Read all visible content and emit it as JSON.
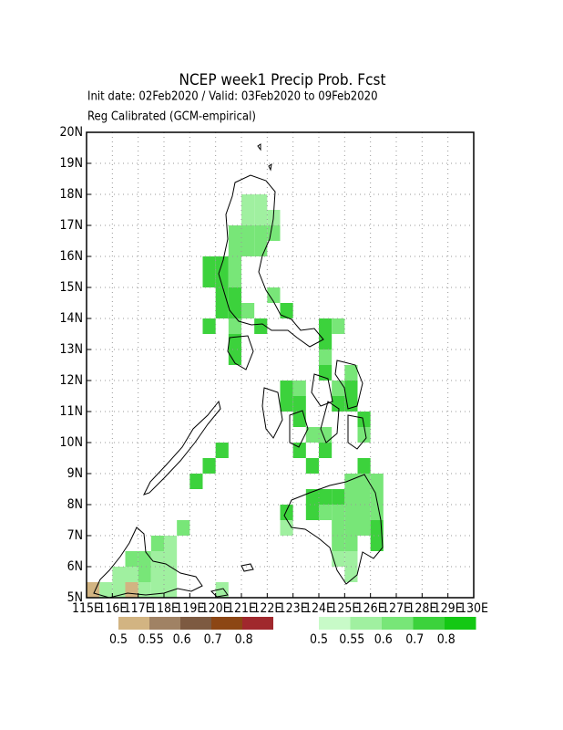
{
  "chart_data": {
    "type": "grid-map",
    "title": "NCEP week1 Precip Prob. Fcst",
    "subtitle": "Init date: 02Feb2020 / Valid: 03Feb2020 to 09Feb2020",
    "annotation": "Reg Calibrated (GCM-empirical)",
    "xlim": [
      115,
      130
    ],
    "ylim": [
      5,
      20
    ],
    "xticks": [
      {
        "value": 115,
        "label": "115E"
      },
      {
        "value": 116,
        "label": "116E"
      },
      {
        "value": 117,
        "label": "117E"
      },
      {
        "value": 118,
        "label": "118E"
      },
      {
        "value": 119,
        "label": "119E"
      },
      {
        "value": 120,
        "label": "120E"
      },
      {
        "value": 121,
        "label": "121E"
      },
      {
        "value": 122,
        "label": "122E"
      },
      {
        "value": 123,
        "label": "123E"
      },
      {
        "value": 124,
        "label": "124E"
      },
      {
        "value": 125,
        "label": "125E"
      },
      {
        "value": 126,
        "label": "126E"
      },
      {
        "value": 127,
        "label": "127E"
      },
      {
        "value": 128,
        "label": "128E"
      },
      {
        "value": 129,
        "label": "129E"
      },
      {
        "value": 130,
        "label": "130E"
      }
    ],
    "yticks": [
      {
        "value": 5,
        "label": "5N"
      },
      {
        "value": 6,
        "label": "6N"
      },
      {
        "value": 7,
        "label": "7N"
      },
      {
        "value": 8,
        "label": "8N"
      },
      {
        "value": 9,
        "label": "9N"
      },
      {
        "value": 10,
        "label": "10N"
      },
      {
        "value": 11,
        "label": "11N"
      },
      {
        "value": 12,
        "label": "12N"
      },
      {
        "value": 13,
        "label": "13N"
      },
      {
        "value": 14,
        "label": "14N"
      },
      {
        "value": 15,
        "label": "15N"
      },
      {
        "value": 16,
        "label": "16N"
      },
      {
        "value": 17,
        "label": "17N"
      },
      {
        "value": 18,
        "label": "18N"
      },
      {
        "value": 19,
        "label": "19N"
      },
      {
        "value": 20,
        "label": "20N"
      }
    ],
    "grid": true,
    "levels": [
      0.5,
      0.55,
      0.6,
      0.7,
      0.8
    ],
    "dry_colors": [
      "#d2b482",
      "#a08264",
      "#7d5a41",
      "#8c4614",
      "#a0282d"
    ],
    "wet_colors": [
      "#c8fac8",
      "#a0f0a0",
      "#78e678",
      "#3cd23c",
      "#14c814"
    ],
    "dry_cells": [
      [
        115,
        5,
        0.52
      ],
      [
        116.5,
        5,
        0.52
      ]
    ],
    "cells": [
      [
        121,
        17.5,
        0.57
      ],
      [
        121.5,
        17.5,
        0.57
      ],
      [
        121,
        17,
        0.57
      ],
      [
        121.5,
        17,
        0.57
      ],
      [
        122,
        17,
        0.57
      ],
      [
        120.5,
        16.5,
        0.62
      ],
      [
        121,
        16.5,
        0.62
      ],
      [
        121.5,
        16.5,
        0.62
      ],
      [
        122,
        16.5,
        0.62
      ],
      [
        120.5,
        16,
        0.62
      ],
      [
        121,
        16,
        0.62
      ],
      [
        121.5,
        16,
        0.62
      ],
      [
        119.5,
        15.5,
        0.75
      ],
      [
        120,
        15.5,
        0.75
      ],
      [
        120.5,
        15.5,
        0.62
      ],
      [
        119.5,
        15,
        0.75
      ],
      [
        120,
        15,
        0.75
      ],
      [
        120.5,
        15,
        0.62
      ],
      [
        120,
        14.5,
        0.75
      ],
      [
        120.5,
        14.5,
        0.75
      ],
      [
        122,
        14.5,
        0.62
      ],
      [
        120,
        14,
        0.75
      ],
      [
        120.5,
        14,
        0.75
      ],
      [
        121,
        14,
        0.62
      ],
      [
        122.5,
        14,
        0.75
      ],
      [
        119.5,
        13.5,
        0.75
      ],
      [
        120.5,
        13.5,
        0.62
      ],
      [
        121.5,
        13.5,
        0.75
      ],
      [
        124,
        13.5,
        0.75
      ],
      [
        124.5,
        13.5,
        0.62
      ],
      [
        120.5,
        13,
        0.75
      ],
      [
        124,
        13,
        0.75
      ],
      [
        120.5,
        12.5,
        0.75
      ],
      [
        124,
        12.5,
        0.62
      ],
      [
        124,
        12,
        0.75
      ],
      [
        125,
        12,
        0.62
      ],
      [
        122.5,
        11.5,
        0.75
      ],
      [
        123,
        11.5,
        0.62
      ],
      [
        124.5,
        11.5,
        0.62
      ],
      [
        125,
        11.5,
        0.75
      ],
      [
        122.5,
        11,
        0.75
      ],
      [
        123,
        11,
        0.75
      ],
      [
        124.5,
        11,
        0.75
      ],
      [
        125,
        11,
        0.75
      ],
      [
        123,
        10.5,
        0.75
      ],
      [
        125.5,
        10.5,
        0.75
      ],
      [
        123.5,
        10,
        0.62
      ],
      [
        124,
        10,
        0.62
      ],
      [
        125.5,
        10,
        0.62
      ],
      [
        120,
        9.5,
        0.75
      ],
      [
        123,
        9.5,
        0.75
      ],
      [
        124,
        9.5,
        0.75
      ],
      [
        119.5,
        9,
        0.75
      ],
      [
        123.5,
        9,
        0.75
      ],
      [
        125.5,
        9,
        0.75
      ],
      [
        119,
        8.5,
        0.75
      ],
      [
        125,
        8.5,
        0.62
      ],
      [
        125.5,
        8.5,
        0.62
      ],
      [
        126,
        8.5,
        0.62
      ],
      [
        123.5,
        8,
        0.75
      ],
      [
        124,
        8,
        0.75
      ],
      [
        124.5,
        8,
        0.75
      ],
      [
        125,
        8,
        0.62
      ],
      [
        125.5,
        8,
        0.62
      ],
      [
        126,
        8,
        0.62
      ],
      [
        122.5,
        7.5,
        0.75
      ],
      [
        123.5,
        7.5,
        0.75
      ],
      [
        124,
        7.5,
        0.62
      ],
      [
        124.5,
        7.5,
        0.62
      ],
      [
        125,
        7.5,
        0.62
      ],
      [
        125.5,
        7.5,
        0.62
      ],
      [
        126,
        7.5,
        0.62
      ],
      [
        118.5,
        7,
        0.62
      ],
      [
        122.5,
        7,
        0.57
      ],
      [
        124.5,
        7,
        0.62
      ],
      [
        125,
        7,
        0.62
      ],
      [
        125.5,
        7,
        0.62
      ],
      [
        126,
        7,
        0.75
      ],
      [
        117.5,
        6.5,
        0.62
      ],
      [
        118,
        6.5,
        0.57
      ],
      [
        124.5,
        6.5,
        0.62
      ],
      [
        125,
        6.5,
        0.62
      ],
      [
        126,
        6.5,
        0.75
      ],
      [
        116.5,
        6,
        0.62
      ],
      [
        117,
        6,
        0.62
      ],
      [
        117.5,
        6,
        0.57
      ],
      [
        118,
        6,
        0.57
      ],
      [
        124.5,
        6,
        0.57
      ],
      [
        125,
        6,
        0.57
      ],
      [
        116,
        5.5,
        0.57
      ],
      [
        116.5,
        5.5,
        0.57
      ],
      [
        117,
        5.5,
        0.62
      ],
      [
        117.5,
        5.5,
        0.57
      ],
      [
        118,
        5.5,
        0.57
      ],
      [
        125,
        5.5,
        0.57
      ],
      [
        115.5,
        5,
        0.57
      ],
      [
        116,
        5,
        0.57
      ],
      [
        117,
        5,
        0.57
      ],
      [
        117.5,
        5,
        0.57
      ],
      [
        118,
        5,
        0.57
      ],
      [
        120,
        5,
        0.57
      ]
    ]
  }
}
